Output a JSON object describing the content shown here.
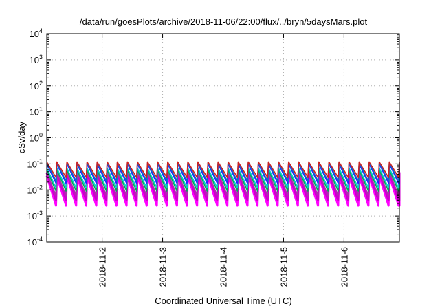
{
  "chart_data": {
    "type": "line",
    "title": "/data/run/goesPlots/archive/2018-11-06/22:00/flux/../bryn/5daysMars.plot",
    "xlabel": "Coordinated Universal Time (UTC)",
    "ylabel": "cSv/day",
    "yscale": "log",
    "ylim": [
      0.0001,
      10000
    ],
    "xlim": [
      "2018-11-01T02:00",
      "2018-11-06T22:00"
    ],
    "grid": true,
    "y_ticks": [
      {
        "base": "10",
        "exp": "-4",
        "value": 0.0001
      },
      {
        "base": "10",
        "exp": "-3",
        "value": 0.001
      },
      {
        "base": "10",
        "exp": "-2",
        "value": 0.01
      },
      {
        "base": "10",
        "exp": "-1",
        "value": 0.1
      },
      {
        "base": "10",
        "exp": "0",
        "value": 1
      },
      {
        "base": "10",
        "exp": "1",
        "value": 10
      },
      {
        "base": "10",
        "exp": "2",
        "value": 100
      },
      {
        "base": "10",
        "exp": "3",
        "value": 1000
      },
      {
        "base": "10",
        "exp": "4",
        "value": 10000
      }
    ],
    "x_ticks": [
      {
        "label": "2018-11-2",
        "date": "2018-11-02T00:00"
      },
      {
        "label": "2018-11-3",
        "date": "2018-11-03T00:00"
      },
      {
        "label": "2018-11-4",
        "date": "2018-11-04T00:00"
      },
      {
        "label": "2018-11-5",
        "date": "2018-11-05T00:00"
      },
      {
        "label": "2018-11-6",
        "date": "2018-11-06T00:00"
      }
    ],
    "sawtooth_period_hours": 4,
    "series": [
      {
        "color": "#ff00ff",
        "peak": 0.035,
        "trough": 0.0025
      },
      {
        "color": "#cc00cc",
        "peak": 0.045,
        "trough": 0.004
      },
      {
        "color": "#aa33aa",
        "peak": 0.05,
        "trough": 0.006
      },
      {
        "color": "#00aa55",
        "peak": 0.06,
        "trough": 0.009
      },
      {
        "color": "#00cccc",
        "peak": 0.07,
        "trough": 0.012
      },
      {
        "color": "#2222ff",
        "peak": 0.1,
        "trough": 0.018
      },
      {
        "color": "#1166cc",
        "peak": 0.11,
        "trough": 0.022
      },
      {
        "color": "#cc2222",
        "peak": 0.12,
        "trough": 0.03
      }
    ]
  }
}
